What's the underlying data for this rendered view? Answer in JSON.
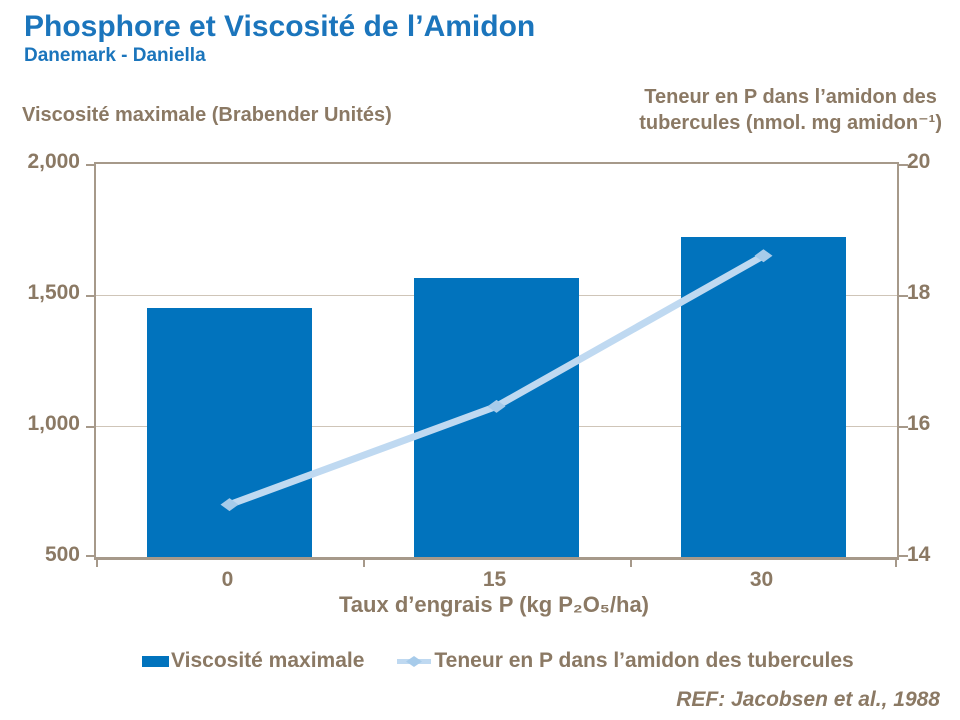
{
  "page": {
    "title": "Phosphore et Viscosité de l’Amidon",
    "subtitle": "Danemark - Daniella",
    "reference": "REF: Jacobsen et al., 1988"
  },
  "colors": {
    "title_blue": "#1B75BC",
    "bar_blue": "#0173BD",
    "line_blue": "#BFD9F1",
    "marker_blue": "#A7CBEA",
    "text_tan": "#8B7964",
    "axis_border": "#A6998A",
    "gridline": "#CFC5B8"
  },
  "chart_data": {
    "type": "bar",
    "categories": [
      "0",
      "15",
      "30"
    ],
    "series": [
      {
        "name": "Viscosité maximale",
        "type": "bar",
        "axis": "left",
        "values": [
          1450,
          1565,
          1720
        ]
      },
      {
        "name": "Teneur en P dans l’amidon des tubercules",
        "type": "line",
        "axis": "right",
        "values": [
          14.8,
          16.3,
          18.6
        ]
      }
    ],
    "left_axis": {
      "title": "Viscosité maximale (Brabender Unités)",
      "tick_labels": [
        "2,000",
        "1,500",
        "1,000",
        "500"
      ],
      "tick_values": [
        2000,
        1500,
        1000,
        500
      ],
      "range": [
        500,
        2000
      ]
    },
    "right_axis": {
      "title_line1": "Teneur en P dans l’amidon des",
      "title_line2": "tubercules (nmol. mg amidon⁻¹)",
      "tick_labels": [
        "20",
        "18",
        "16",
        "14"
      ],
      "tick_values": [
        20,
        18,
        16,
        14
      ],
      "range": [
        14,
        20
      ]
    },
    "x_axis": {
      "title": "Taux d’engrais P (kg P₂O₅/ha)",
      "labels": [
        "0",
        "15",
        "30"
      ]
    },
    "gridline_values": [
      1500,
      1000
    ],
    "grid": true,
    "legend_position": "bottom",
    "legend": [
      {
        "label": "Viscosité maximale",
        "type": "bar"
      },
      {
        "label": "Teneur en P dans l’amidon des tubercules",
        "type": "line"
      }
    ]
  }
}
